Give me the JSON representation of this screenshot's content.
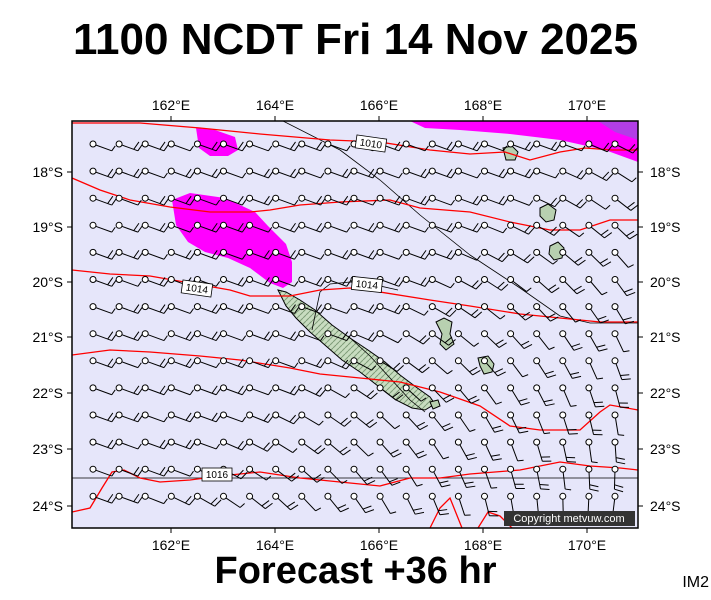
{
  "title": "1100 NCDT Fri 14 Nov 2025",
  "footer": "Forecast +36 hr",
  "image_code": "IM2",
  "copyright": "Copyright metvuw.com",
  "lon_labels": [
    "162°E",
    "164°E",
    "166°E",
    "168°E",
    "170°E"
  ],
  "lat_labels": [
    "18°S",
    "19°S",
    "20°S",
    "21°S",
    "22°S",
    "23°S",
    "24°S"
  ],
  "isobar_labels": [
    "1010",
    "1014",
    "1014",
    "1016"
  ],
  "colors": {
    "ocean": "#e6e6fa",
    "precip": "#ff00ff",
    "precip_heavy": "#b23ee6",
    "isobar": "#ff0000",
    "land": "#b8d0b0",
    "barb": "#000000"
  },
  "wind_barb_icon": "wind-barb-icon"
}
